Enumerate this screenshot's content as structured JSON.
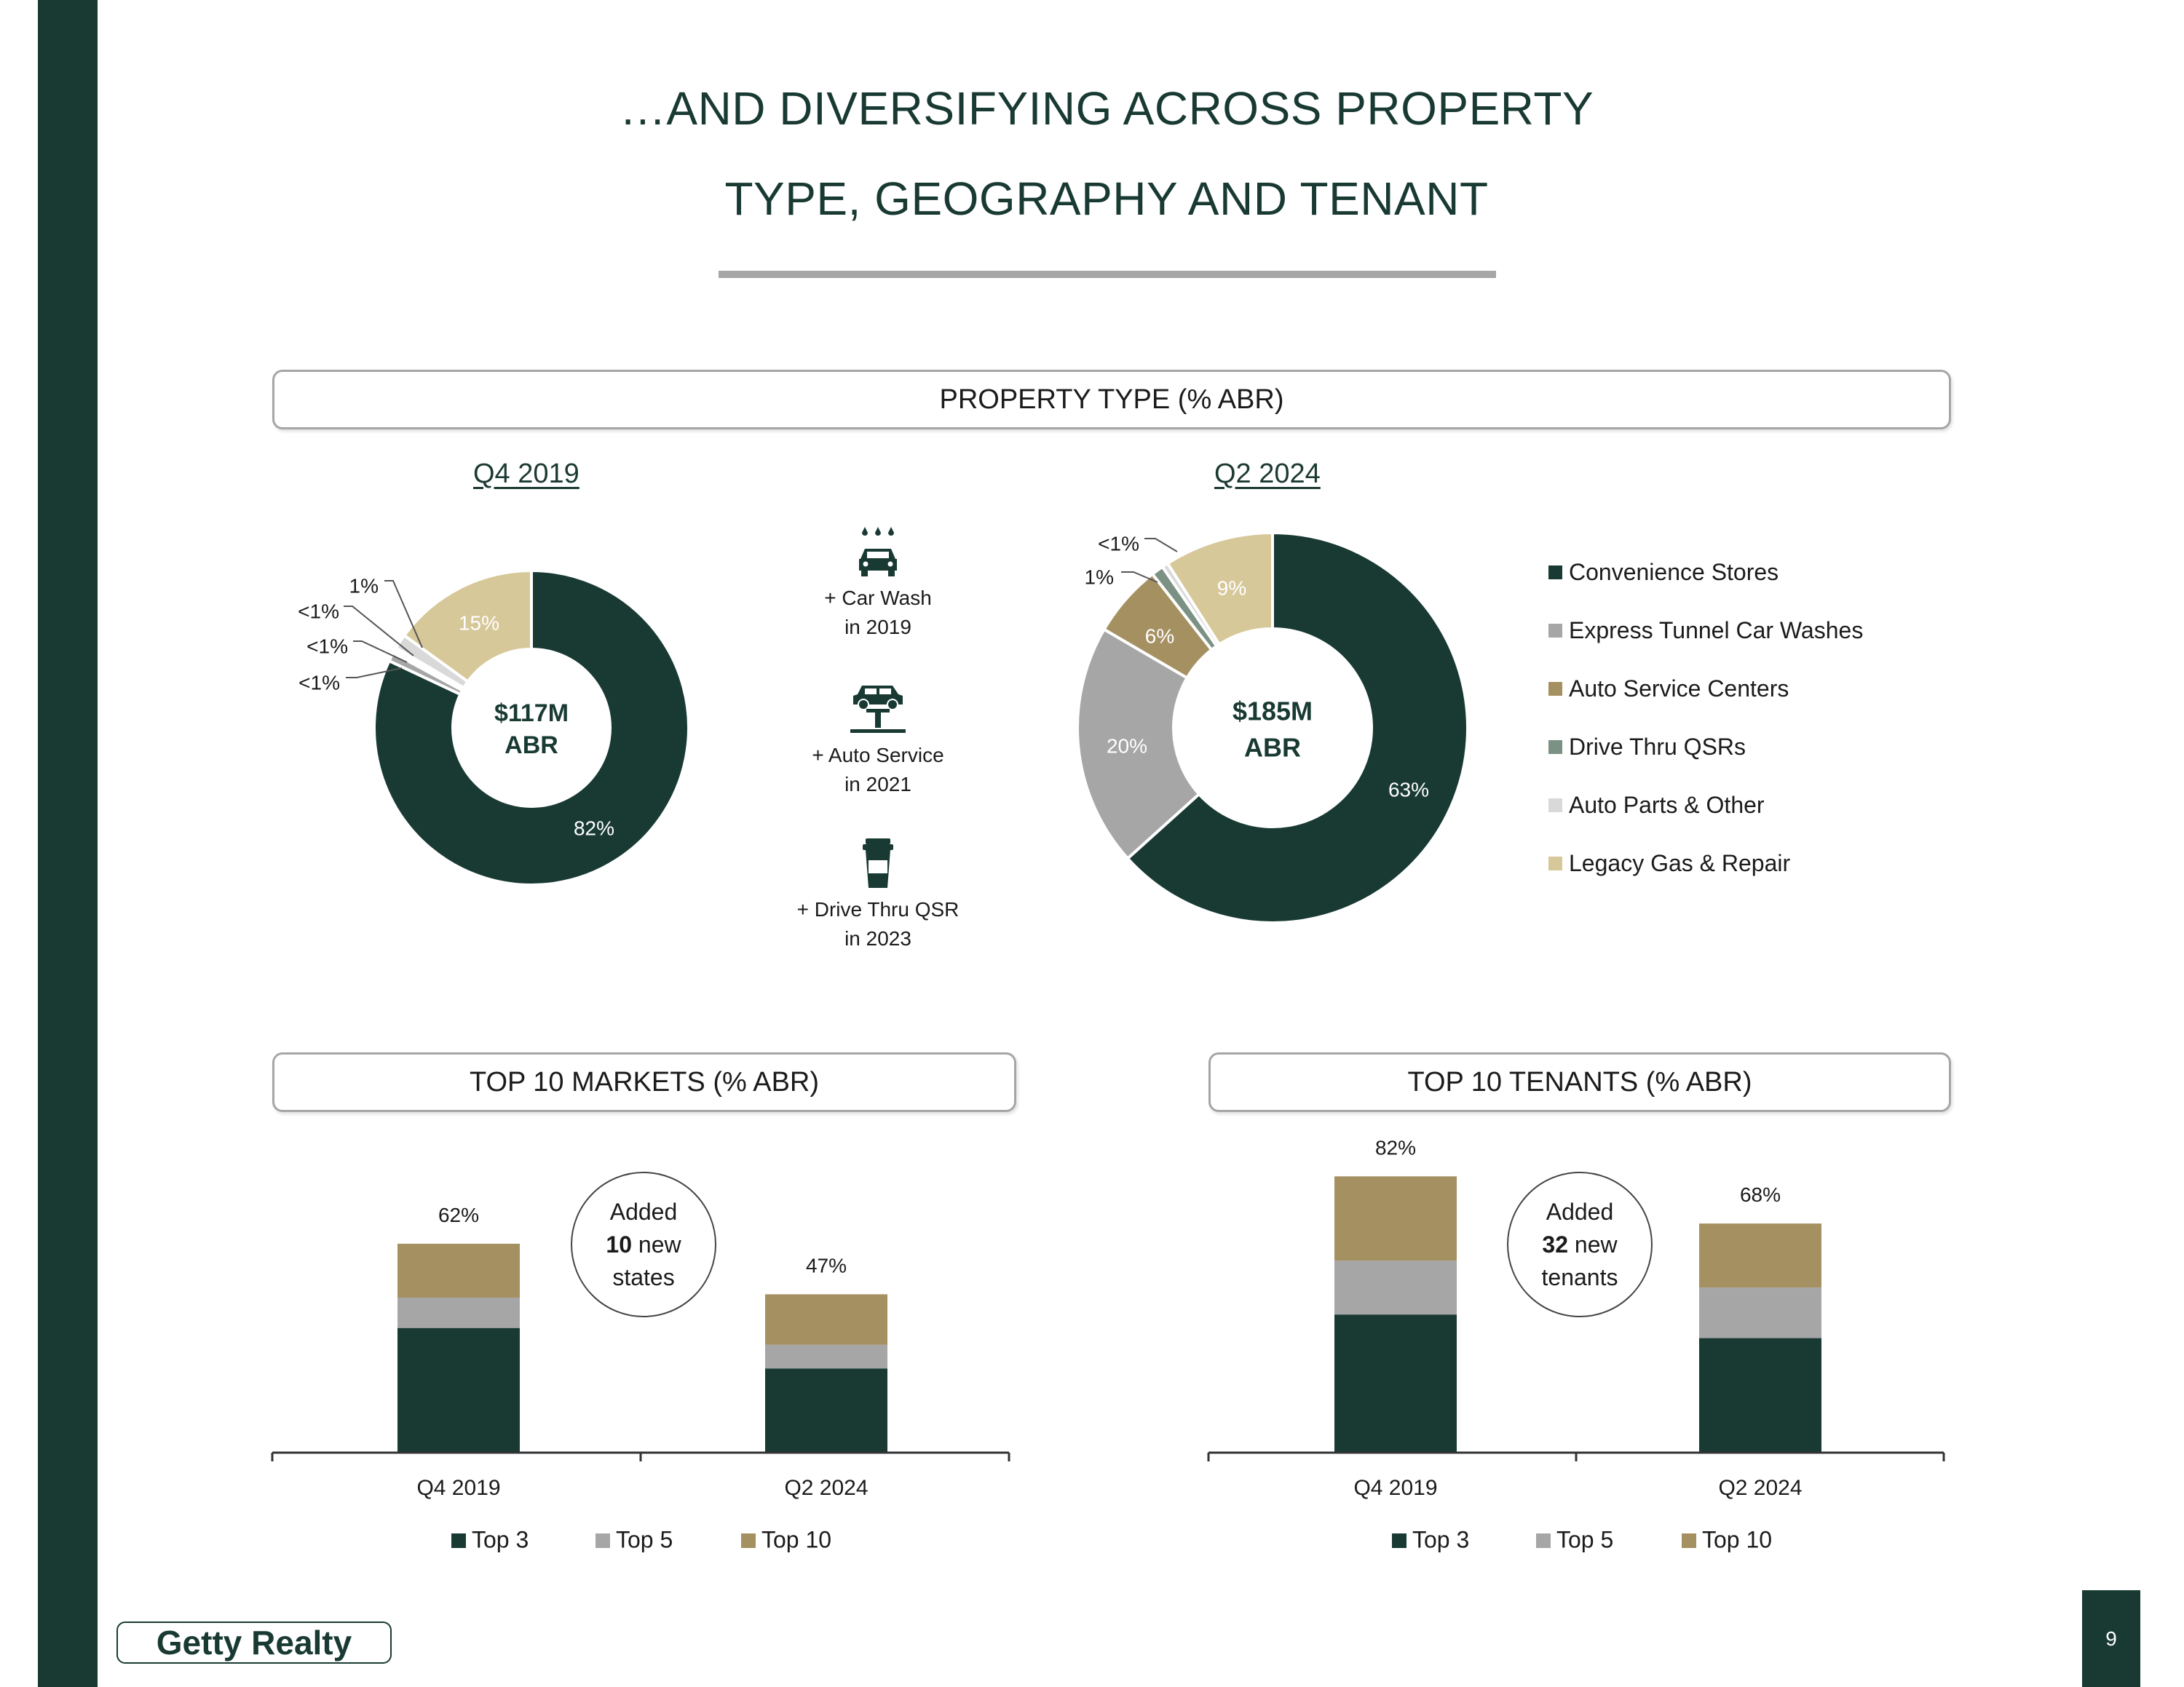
{
  "title": {
    "line1": "…AND DIVERSIFYING ACROSS PROPERTY",
    "line2": "TYPE, GEOGRAPHY AND TENANT"
  },
  "sections": {
    "property_type": "PROPERTY TYPE (% ABR)",
    "markets": "TOP 10 MARKETS (% ABR)",
    "tenants": "TOP 10 TENANTS (% ABR)"
  },
  "colors": {
    "dark_green": "#193a33",
    "gray": "#a6a6a6",
    "tan": "#a59062",
    "sage": "#7b9184",
    "light_gray": "#d9d9d9",
    "beige": "#d7c89a"
  },
  "property_legend": [
    {
      "label": "Convenience Stores",
      "color": "#193a33"
    },
    {
      "label": "Express Tunnel Car Washes",
      "color": "#a6a6a6"
    },
    {
      "label": "Auto Service Centers",
      "color": "#a59062"
    },
    {
      "label": "Drive Thru QSRs",
      "color": "#7b9184"
    },
    {
      "label": "Auto Parts & Other",
      "color": "#d9d9d9"
    },
    {
      "label": "Legacy Gas & Repair",
      "color": "#d7c89a"
    }
  ],
  "features": [
    {
      "icon": "car-wash-icon",
      "line1": "+ Car Wash",
      "line2": "in 2019"
    },
    {
      "icon": "auto-service-icon",
      "line1": "+ Auto Service",
      "line2": "in 2021"
    },
    {
      "icon": "drive-thru-cup-icon",
      "line1": "+ Drive Thru QSR",
      "line2": "in 2023"
    }
  ],
  "bubbles": {
    "markets": {
      "prefix": "Added",
      "number": "10",
      "suffix1": "new",
      "suffix2": "states"
    },
    "tenants": {
      "prefix": "Added",
      "number": "32",
      "suffix1": "new",
      "suffix2": "tenants"
    }
  },
  "chart_data": [
    {
      "type": "pie",
      "title": "Q4 2019",
      "center_label": [
        "$117M",
        "ABR"
      ],
      "slices": [
        {
          "name": "Convenience Stores",
          "value": 82,
          "label": "82%"
        },
        {
          "name": "Express Tunnel Car Washes",
          "value": 0.9,
          "label": "<1%"
        },
        {
          "name": "Auto Service Centers",
          "value": 0.3,
          "label": "<1%"
        },
        {
          "name": "Drive Thru QSRs",
          "value": 0.3,
          "label": "<1%"
        },
        {
          "name": "Auto Parts & Other",
          "value": 1.5,
          "label": "1%"
        },
        {
          "name": "Legacy Gas & Repair",
          "value": 15,
          "label": "15%"
        }
      ]
    },
    {
      "type": "pie",
      "title": "Q2 2024",
      "center_label": [
        "$185M",
        "ABR"
      ],
      "slices": [
        {
          "name": "Convenience Stores",
          "value": 63,
          "label": "63%"
        },
        {
          "name": "Express Tunnel Car Washes",
          "value": 20,
          "label": "20%"
        },
        {
          "name": "Auto Service Centers",
          "value": 6,
          "label": "6%"
        },
        {
          "name": "Drive Thru QSRs",
          "value": 1,
          "label": "1%"
        },
        {
          "name": "Auto Parts & Other",
          "value": 0.5,
          "label": "<1%"
        },
        {
          "name": "Legacy Gas & Repair",
          "value": 9,
          "label": "9%"
        }
      ]
    },
    {
      "type": "bar",
      "stacked": true,
      "title": "TOP 10 MARKETS (% ABR)",
      "categories": [
        "Q4 2019",
        "Q2 2024"
      ],
      "series": [
        {
          "name": "Top 3",
          "values": [
            37,
            25
          ],
          "color": "#193a33"
        },
        {
          "name": "Top 5",
          "values": [
            9,
            7
          ],
          "color": "#a6a6a6"
        },
        {
          "name": "Top 10",
          "values": [
            16,
            15
          ],
          "color": "#a59062"
        }
      ],
      "totals": [
        "62%",
        "47%"
      ],
      "ylim": [
        0,
        82
      ]
    },
    {
      "type": "bar",
      "stacked": true,
      "title": "TOP 10 TENANTS (% ABR)",
      "categories": [
        "Q4 2019",
        "Q2 2024"
      ],
      "series": [
        {
          "name": "Top 3",
          "values": [
            41,
            34
          ],
          "color": "#193a33"
        },
        {
          "name": "Top 5",
          "values": [
            16,
            15
          ],
          "color": "#a6a6a6"
        },
        {
          "name": "Top 10",
          "values": [
            25,
            19
          ],
          "color": "#a59062"
        }
      ],
      "totals": [
        "82%",
        "68%"
      ],
      "ylim": [
        0,
        82
      ]
    }
  ],
  "logo": "Getty Realty",
  "page_number": "9"
}
